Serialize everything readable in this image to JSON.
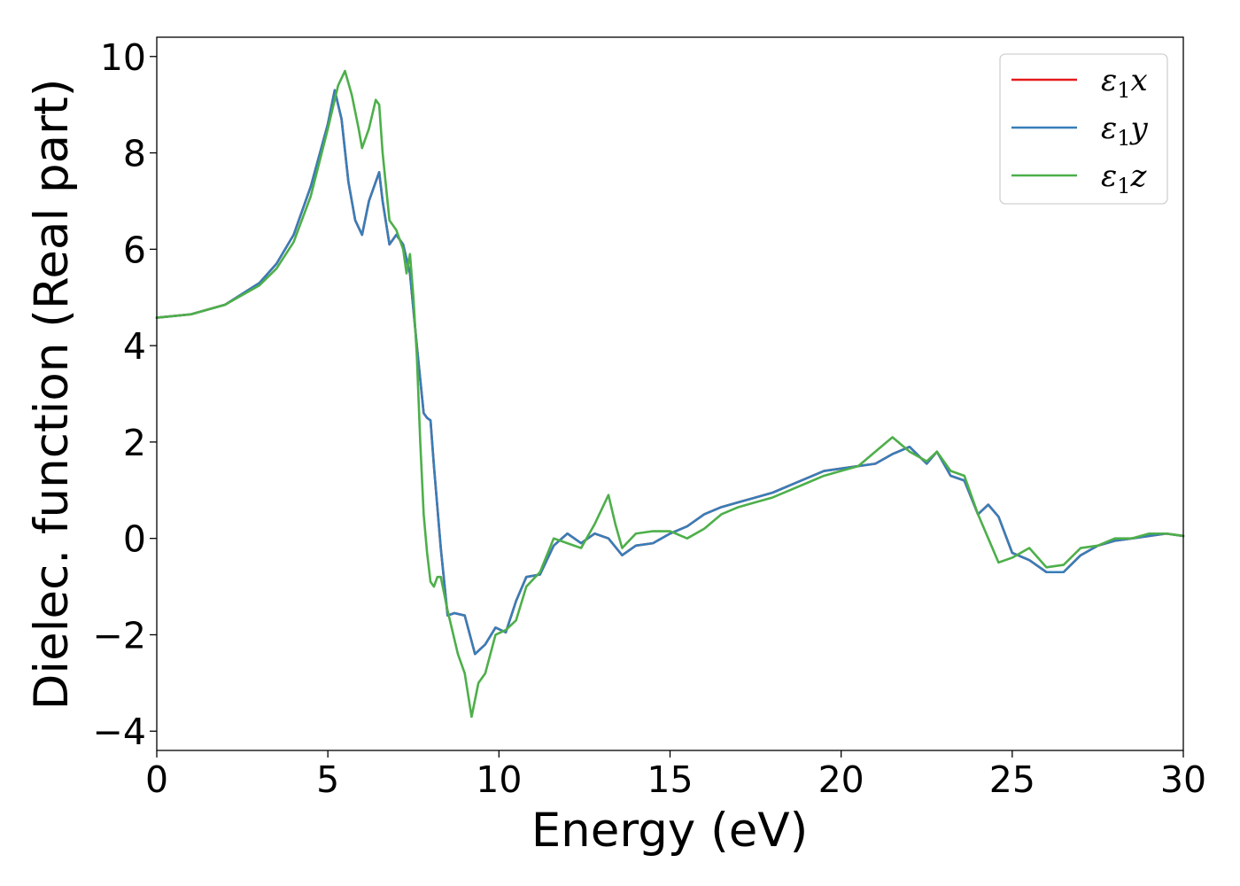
{
  "chart_data": {
    "type": "line",
    "title": "",
    "xlabel": "Energy (eV)",
    "ylabel": "Dielec. function (Real part)",
    "xlim": [
      0,
      30
    ],
    "ylim": [
      -4.4,
      10.4
    ],
    "xticks": [
      0,
      5,
      10,
      15,
      20,
      25,
      30
    ],
    "xtick_labels": [
      "0",
      "5",
      "10",
      "15",
      "20",
      "25",
      "30"
    ],
    "yticks": [
      -4,
      -2,
      0,
      2,
      4,
      6,
      8,
      10
    ],
    "ytick_labels": [
      "−4",
      "−2",
      "0",
      "2",
      "4",
      "6",
      "8",
      "10"
    ],
    "grid": false,
    "legend_position": "top-right",
    "series": [
      {
        "name": "ε1x",
        "symbol": "ε",
        "sub": "1",
        "axis": "x",
        "color": "#e41a1c",
        "x": [
          0,
          1,
          2,
          3,
          3.5,
          4,
          4.5,
          5,
          5.2,
          5.4,
          5.6,
          5.8,
          6.0,
          6.2,
          6.4,
          6.5,
          6.6,
          6.8,
          7.0,
          7.2,
          7.4,
          7.6,
          7.8,
          7.9,
          8.0,
          8.1,
          8.3,
          8.5,
          8.7,
          9.0,
          9.3,
          9.6,
          9.9,
          10.2,
          10.5,
          10.8,
          11.2,
          11.6,
          12.0,
          12.4,
          12.8,
          13.2,
          13.6,
          14.0,
          14.5,
          15.0,
          15.5,
          16.0,
          16.5,
          17.0,
          17.5,
          18.0,
          18.5,
          19.0,
          19.5,
          20.0,
          20.5,
          21.0,
          21.5,
          22.0,
          22.5,
          22.8,
          23.2,
          23.6,
          24.0,
          24.3,
          24.6,
          25.0,
          25.5,
          26.0,
          26.5,
          27.0,
          27.5,
          28.0,
          28.5,
          29.0,
          29.5,
          30.0
        ],
        "y": [
          4.58,
          4.65,
          4.85,
          5.3,
          5.7,
          6.3,
          7.3,
          8.6,
          9.3,
          8.7,
          7.4,
          6.6,
          6.3,
          7.0,
          7.4,
          7.6,
          7.0,
          6.1,
          6.3,
          6.1,
          5.5,
          4.0,
          2.6,
          2.5,
          2.45,
          1.5,
          -0.2,
          -1.6,
          -1.55,
          -1.6,
          -2.4,
          -2.2,
          -1.85,
          -1.95,
          -1.3,
          -0.8,
          -0.75,
          -0.15,
          0.1,
          -0.1,
          0.1,
          0.0,
          -0.35,
          -0.15,
          -0.1,
          0.1,
          0.25,
          0.5,
          0.65,
          0.75,
          0.85,
          0.95,
          1.1,
          1.25,
          1.4,
          1.45,
          1.5,
          1.55,
          1.75,
          1.9,
          1.55,
          1.8,
          1.3,
          1.2,
          0.5,
          0.7,
          0.45,
          -0.3,
          -0.45,
          -0.7,
          -0.7,
          -0.35,
          -0.15,
          -0.05,
          0.0,
          0.05,
          0.1,
          0.05
        ]
      },
      {
        "name": "ε1y",
        "symbol": "ε",
        "sub": "1",
        "axis": "y",
        "color": "#377eb8",
        "x": [
          0,
          1,
          2,
          3,
          3.5,
          4,
          4.5,
          5,
          5.2,
          5.4,
          5.6,
          5.8,
          6.0,
          6.2,
          6.4,
          6.5,
          6.6,
          6.8,
          7.0,
          7.2,
          7.4,
          7.6,
          7.8,
          7.9,
          8.0,
          8.1,
          8.3,
          8.5,
          8.7,
          9.0,
          9.3,
          9.6,
          9.9,
          10.2,
          10.5,
          10.8,
          11.2,
          11.6,
          12.0,
          12.4,
          12.8,
          13.2,
          13.6,
          14.0,
          14.5,
          15.0,
          15.5,
          16.0,
          16.5,
          17.0,
          17.5,
          18.0,
          18.5,
          19.0,
          19.5,
          20.0,
          20.5,
          21.0,
          21.5,
          22.0,
          22.5,
          22.8,
          23.2,
          23.6,
          24.0,
          24.3,
          24.6,
          25.0,
          25.5,
          26.0,
          26.5,
          27.0,
          27.5,
          28.0,
          28.5,
          29.0,
          29.5,
          30.0
        ],
        "y": [
          4.58,
          4.65,
          4.85,
          5.3,
          5.7,
          6.3,
          7.3,
          8.6,
          9.3,
          8.7,
          7.4,
          6.6,
          6.3,
          7.0,
          7.4,
          7.6,
          7.0,
          6.1,
          6.3,
          6.1,
          5.5,
          4.0,
          2.6,
          2.5,
          2.45,
          1.5,
          -0.2,
          -1.6,
          -1.55,
          -1.6,
          -2.4,
          -2.2,
          -1.85,
          -1.95,
          -1.3,
          -0.8,
          -0.75,
          -0.15,
          0.1,
          -0.1,
          0.1,
          0.0,
          -0.35,
          -0.15,
          -0.1,
          0.1,
          0.25,
          0.5,
          0.65,
          0.75,
          0.85,
          0.95,
          1.1,
          1.25,
          1.4,
          1.45,
          1.5,
          1.55,
          1.75,
          1.9,
          1.55,
          1.8,
          1.3,
          1.2,
          0.5,
          0.7,
          0.45,
          -0.3,
          -0.45,
          -0.7,
          -0.7,
          -0.35,
          -0.15,
          -0.05,
          0.0,
          0.05,
          0.1,
          0.05
        ]
      },
      {
        "name": "ε1z",
        "symbol": "ε",
        "sub": "1",
        "axis": "z",
        "color": "#4daf4a",
        "x": [
          0,
          1,
          2,
          3,
          3.5,
          4,
          4.5,
          5,
          5.3,
          5.5,
          5.7,
          5.9,
          6.0,
          6.2,
          6.4,
          6.5,
          6.6,
          6.8,
          7.0,
          7.2,
          7.3,
          7.4,
          7.5,
          7.6,
          7.7,
          7.8,
          7.9,
          8.0,
          8.1,
          8.2,
          8.3,
          8.5,
          8.8,
          9.0,
          9.2,
          9.4,
          9.6,
          9.9,
          10.2,
          10.5,
          10.8,
          11.2,
          11.6,
          12.0,
          12.4,
          12.8,
          13.0,
          13.2,
          13.4,
          13.6,
          14.0,
          14.5,
          15.0,
          15.5,
          16.0,
          16.5,
          17.0,
          17.5,
          18.0,
          18.5,
          19.0,
          19.5,
          20.0,
          20.5,
          21.0,
          21.5,
          22.0,
          22.5,
          22.8,
          23.2,
          23.6,
          24.0,
          24.3,
          24.6,
          25.0,
          25.5,
          26.0,
          26.5,
          27.0,
          27.5,
          28.0,
          28.5,
          29.0,
          29.5,
          30.0
        ],
        "y": [
          4.58,
          4.65,
          4.85,
          5.25,
          5.6,
          6.15,
          7.1,
          8.5,
          9.4,
          9.7,
          9.2,
          8.5,
          8.1,
          8.5,
          9.1,
          9.0,
          8.0,
          6.6,
          6.4,
          6.0,
          5.5,
          5.9,
          5.0,
          3.8,
          2.0,
          0.5,
          -0.3,
          -0.9,
          -1.0,
          -0.8,
          -0.8,
          -1.5,
          -2.4,
          -2.8,
          -3.7,
          -3.0,
          -2.8,
          -2.0,
          -1.9,
          -1.7,
          -1.0,
          -0.7,
          0.0,
          -0.1,
          -0.2,
          0.3,
          0.6,
          0.9,
          0.3,
          -0.2,
          0.1,
          0.15,
          0.15,
          0.0,
          0.2,
          0.5,
          0.65,
          0.75,
          0.85,
          1.0,
          1.15,
          1.3,
          1.4,
          1.5,
          1.8,
          2.1,
          1.8,
          1.6,
          1.8,
          1.4,
          1.3,
          0.5,
          0.0,
          -0.5,
          -0.4,
          -0.2,
          -0.6,
          -0.55,
          -0.2,
          -0.15,
          0.0,
          0.0,
          0.1,
          0.1,
          0.05
        ]
      }
    ]
  }
}
